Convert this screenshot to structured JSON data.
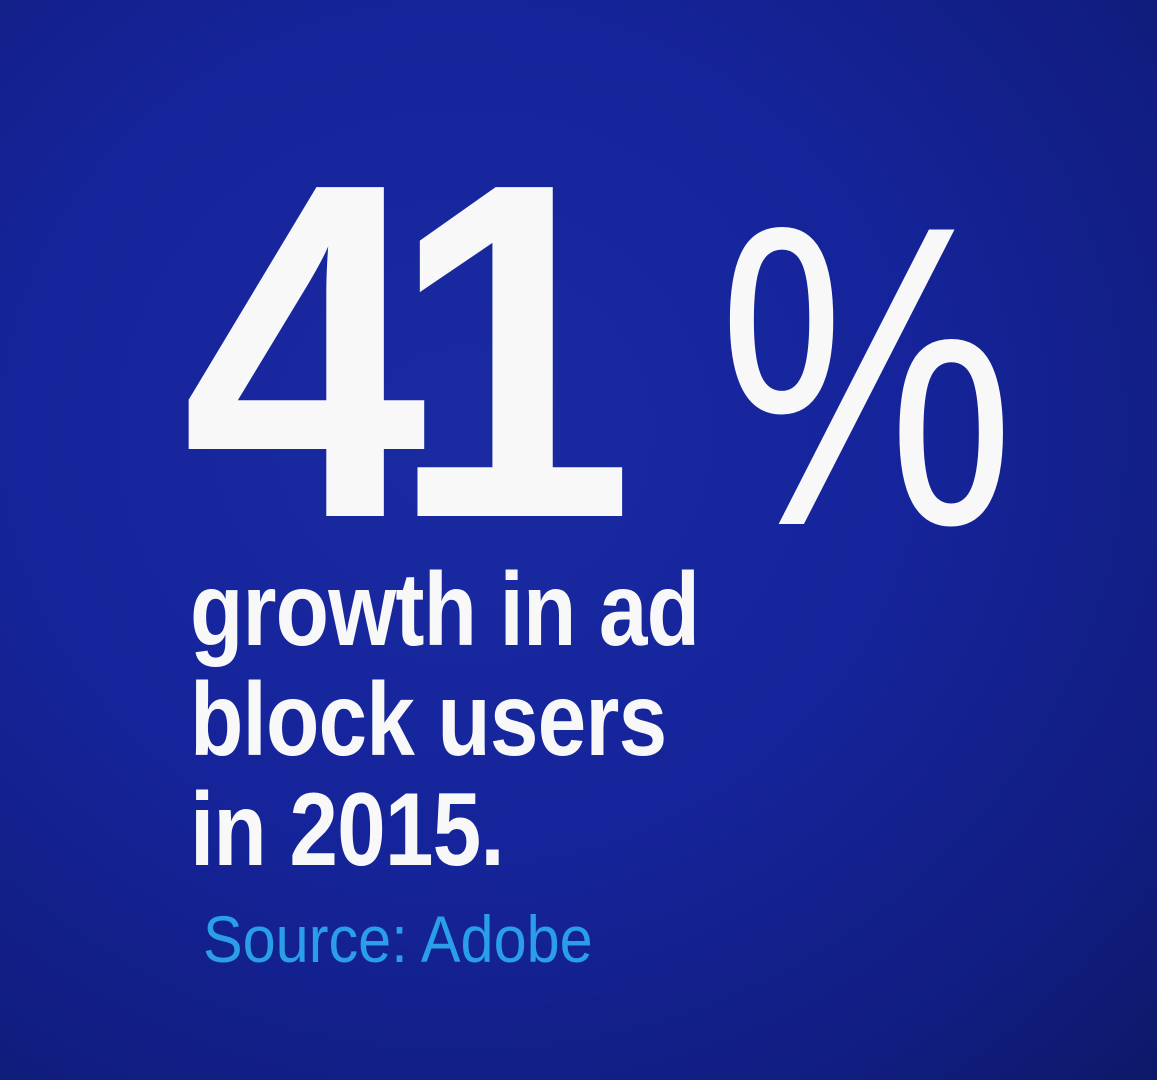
{
  "stat": {
    "number": "41",
    "unit": "%"
  },
  "description": {
    "lines": [
      "growth in ad",
      "block users",
      "in 2015."
    ]
  },
  "source": "Source: Adobe",
  "colors": {
    "background": "#15249a",
    "text": "#f8f8f8",
    "source": "#2a9ee6"
  }
}
